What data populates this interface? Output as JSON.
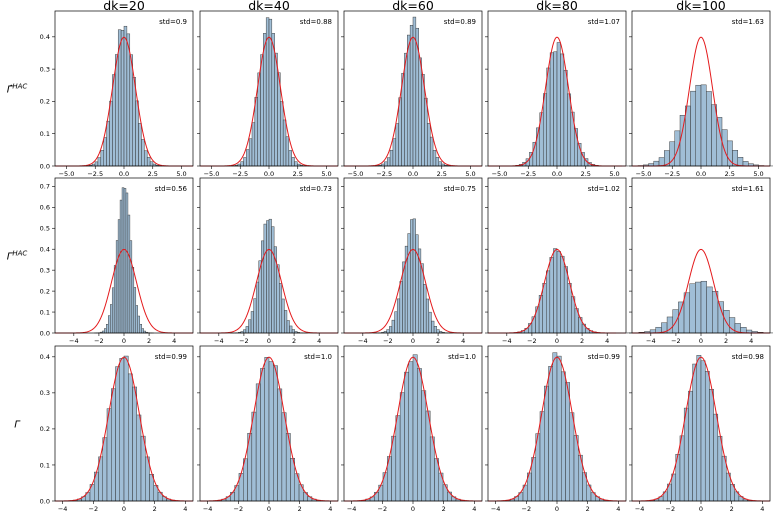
{
  "chart_data": {
    "type": "histogram-grid",
    "column_titles": [
      "dk=20",
      "dk=40",
      "dk=60",
      "dk=80",
      "dk=100"
    ],
    "row_labels": [
      {
        "prefix": "Γ̂",
        "sup": "HAC"
      },
      {
        "prefix": "Γ",
        "sup": "HAC"
      },
      {
        "prefix": "Γ",
        "sup": ""
      }
    ],
    "overlay": {
      "name": "standard normal pdf",
      "mean": 0,
      "std": 1,
      "color": "#e41a1c"
    },
    "bar_color": "#8fb3cf",
    "rows": [
      {
        "ylim": [
          0,
          0.48
        ],
        "yticks": [
          0.0,
          0.1,
          0.2,
          0.3,
          0.4
        ],
        "panels": [
          {
            "std_label": "std=0.9",
            "std": 0.9,
            "xlim": [
              -6.0,
              6.0
            ],
            "xticks": [
              -5.0,
              -2.5,
              0.0,
              2.5,
              5.0
            ],
            "xtick_labels": [
              "−5.0",
              "−2.5",
              "0.0",
              "2.5",
              "5.0"
            ]
          },
          {
            "std_label": "std=0.88",
            "std": 0.88,
            "xlim": [
              -6.0,
              6.0
            ],
            "xticks": [
              -5.0,
              -2.5,
              0.0,
              2.5,
              5.0
            ],
            "xtick_labels": [
              "−5.0",
              "−2.5",
              "0.0",
              "2.5",
              "5.0"
            ]
          },
          {
            "std_label": "std=0.89",
            "std": 0.89,
            "xlim": [
              -6.0,
              6.0
            ],
            "xticks": [
              -5.0,
              -2.5,
              0.0,
              2.5,
              5.0
            ],
            "xtick_labels": [
              "−5.0",
              "−2.5",
              "0.0",
              "2.5",
              "5.0"
            ]
          },
          {
            "std_label": "std=1.07",
            "std": 1.07,
            "xlim": [
              -6.0,
              6.0
            ],
            "xticks": [
              -5.0,
              -2.5,
              0.0,
              2.5,
              5.0
            ],
            "xtick_labels": [
              "−5.0",
              "−2.5",
              "0.0",
              "2.5",
              "5.0"
            ]
          },
          {
            "std_label": "std=1.63",
            "std": 1.63,
            "xlim": [
              -6.0,
              6.0
            ],
            "xticks": [
              -5.0,
              -2.5,
              0.0,
              2.5,
              5.0
            ],
            "xtick_labels": [
              "−5.0",
              "−2.5",
              "0.0",
              "2.5",
              "5.0"
            ]
          }
        ]
      },
      {
        "ylim": [
          0,
          0.74
        ],
        "yticks": [
          0.0,
          0.1,
          0.2,
          0.3,
          0.4,
          0.5,
          0.6,
          0.7
        ],
        "panels": [
          {
            "std_label": "std=0.56",
            "std": 0.56,
            "xlim": [
              -5.5,
              5.5
            ],
            "xticks": [
              -4,
              -2,
              0,
              2,
              4
            ],
            "xtick_labels": [
              "−4",
              "−2",
              "0",
              "2",
              "4"
            ]
          },
          {
            "std_label": "std=0.73",
            "std": 0.73,
            "xlim": [
              -5.5,
              5.5
            ],
            "xticks": [
              -4,
              -2,
              0,
              2,
              4
            ],
            "xtick_labels": [
              "−4",
              "−2",
              "0",
              "2",
              "4"
            ]
          },
          {
            "std_label": "std=0.75",
            "std": 0.75,
            "xlim": [
              -5.5,
              5.5
            ],
            "xticks": [
              -4,
              -2,
              0,
              2,
              4
            ],
            "xtick_labels": [
              "−4",
              "−2",
              "0",
              "2",
              "4"
            ]
          },
          {
            "std_label": "std=1.02",
            "std": 1.02,
            "xlim": [
              -5.5,
              5.5
            ],
            "xticks": [
              -4,
              -2,
              0,
              2,
              4
            ],
            "xtick_labels": [
              "−4",
              "−2",
              "0",
              "2",
              "4"
            ]
          },
          {
            "std_label": "std=1.61",
            "std": 1.61,
            "xlim": [
              -5.5,
              5.5
            ],
            "xticks": [
              -4,
              -2,
              0,
              2,
              4
            ],
            "xtick_labels": [
              "−4",
              "−2",
              "0",
              "2",
              "4"
            ]
          }
        ]
      },
      {
        "ylim": [
          0,
          0.43
        ],
        "yticks": [
          0.0,
          0.1,
          0.2,
          0.3,
          0.4
        ],
        "panels": [
          {
            "std_label": "std=0.99",
            "std": 0.99,
            "xlim": [
              -4.5,
              4.5
            ],
            "xticks": [
              -4,
              -2,
              0,
              2,
              4
            ],
            "xtick_labels": [
              "−4",
              "−2",
              "0",
              "2",
              "4"
            ]
          },
          {
            "std_label": "std=1.0",
            "std": 1.0,
            "xlim": [
              -4.5,
              4.5
            ],
            "xticks": [
              -4,
              -2,
              0,
              2,
              4
            ],
            "xtick_labels": [
              "−4",
              "−2",
              "0",
              "2",
              "4"
            ]
          },
          {
            "std_label": "std=1.0",
            "std": 1.0,
            "xlim": [
              -4.5,
              4.5
            ],
            "xticks": [
              -4,
              -2,
              0,
              2,
              4
            ],
            "xtick_labels": [
              "−4",
              "−2",
              "0",
              "2",
              "4"
            ]
          },
          {
            "std_label": "std=0.99",
            "std": 0.99,
            "xlim": [
              -4.5,
              4.5
            ],
            "xticks": [
              -4,
              -2,
              0,
              2,
              4
            ],
            "xtick_labels": [
              "−4",
              "−2",
              "0",
              "2",
              "4"
            ]
          },
          {
            "std_label": "std=0.98",
            "std": 0.98,
            "xlim": [
              -4.5,
              4.5
            ],
            "xticks": [
              -4,
              -2,
              0,
              2,
              4
            ],
            "xtick_labels": [
              "−4",
              "−2",
              "0",
              "2",
              "4"
            ]
          }
        ]
      }
    ]
  }
}
